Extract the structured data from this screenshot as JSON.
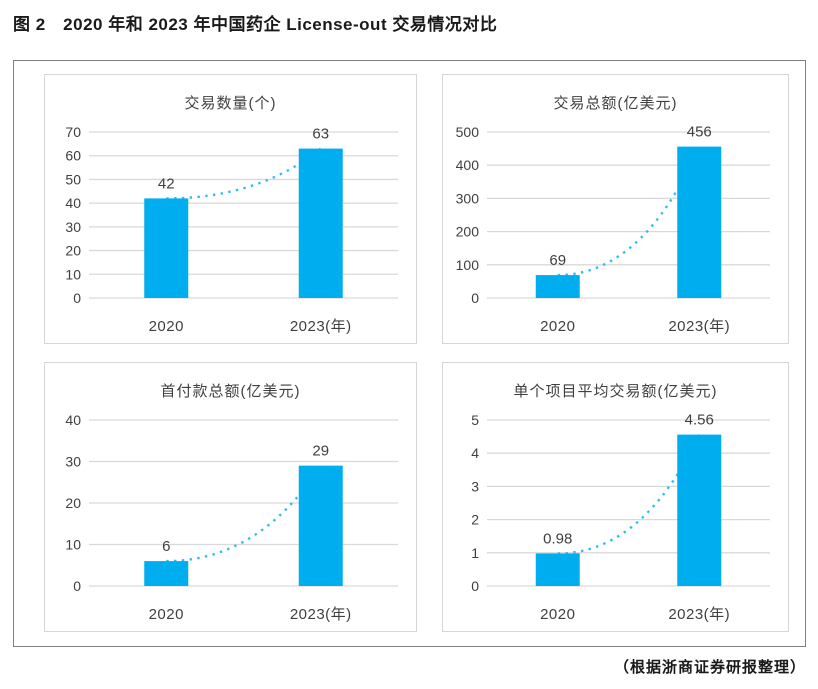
{
  "figure": {
    "caption": "图 2　2020 年和 2023 年中国药企 License-out 交易情况对比",
    "source_note": "（根据浙商证券研报整理）"
  },
  "colors": {
    "bar": "#00AEEF",
    "dotted_line": "#2FBCF2",
    "grid": "#d9d9d9",
    "panel_border": "#d6d6d6",
    "outer_border": "#808080",
    "text": "#404040"
  },
  "chart_data": [
    {
      "type": "bar",
      "title": "交易数量(个)",
      "categories": [
        "2020",
        "2023(年)"
      ],
      "values": [
        42,
        63
      ],
      "value_labels": [
        "42",
        "63"
      ],
      "ylim": [
        0,
        70
      ],
      "ystep": 10,
      "grid": true,
      "legend": "none",
      "trendline": "dotted-curve"
    },
    {
      "type": "bar",
      "title": "交易总额(亿美元)",
      "categories": [
        "2020",
        "2023(年)"
      ],
      "values": [
        69,
        456
      ],
      "value_labels": [
        "69",
        "456"
      ],
      "ylim": [
        0,
        500
      ],
      "ystep": 100,
      "grid": true,
      "legend": "none",
      "trendline": "dotted-curve"
    },
    {
      "type": "bar",
      "title": "首付款总额(亿美元)",
      "categories": [
        "2020",
        "2023(年)"
      ],
      "values": [
        6,
        29
      ],
      "value_labels": [
        "6",
        "29"
      ],
      "ylim": [
        0,
        40
      ],
      "ystep": 10,
      "grid": true,
      "legend": "none",
      "trendline": "dotted-curve"
    },
    {
      "type": "bar",
      "title": "单个项目平均交易额(亿美元)",
      "categories": [
        "2020",
        "2023(年)"
      ],
      "values": [
        0.98,
        4.56
      ],
      "value_labels": [
        "0.98",
        "4.56"
      ],
      "ylim": [
        0,
        5
      ],
      "ystep": 1,
      "grid": true,
      "legend": "none",
      "trendline": "dotted-curve"
    }
  ]
}
